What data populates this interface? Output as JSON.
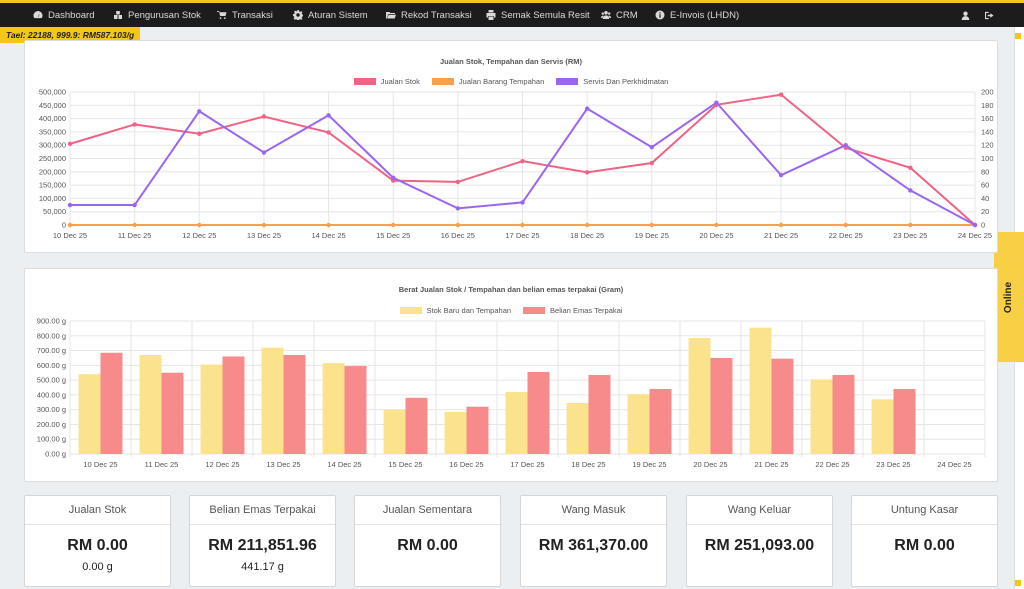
{
  "nav": {
    "items": [
      {
        "label": "Dashboard",
        "icon": "dashboard-icon"
      },
      {
        "label": "Pengurusan Stok",
        "icon": "cubes-icon"
      },
      {
        "label": "Transaksi",
        "icon": "cart-icon"
      },
      {
        "label": "Aturan Sistem",
        "icon": "gear-icon"
      },
      {
        "label": "Rekod Transaksi",
        "icon": "folder-icon"
      },
      {
        "label": "Semak Semula Resit",
        "icon": "print-icon"
      },
      {
        "label": "CRM",
        "icon": "users-icon"
      },
      {
        "label": "E-Invois (LHDN)",
        "icon": "info-icon"
      }
    ],
    "right_icons": [
      "user-icon",
      "sign-out-icon"
    ]
  },
  "tael_info": "Tael: 22188, 999.9: RM587.103/g",
  "online_label": "Online",
  "colors": {
    "accent": "#f5c518",
    "navbar": "#1c1c1c"
  },
  "chart_data": [
    {
      "type": "line",
      "title": "Jualan Stok, Tempahan dan Servis (RM)",
      "x": [
        "10 Dec 25",
        "11 Dec 25",
        "12 Dec 25",
        "13 Dec 25",
        "14 Dec 25",
        "15 Dec 25",
        "16 Dec 25",
        "17 Dec 25",
        "18 Dec 25",
        "19 Dec 25",
        "20 Dec 25",
        "21 Dec 25",
        "22 Dec 25",
        "23 Dec 25",
        "24 Dec 25"
      ],
      "ylim": [
        0,
        500000
      ],
      "y_ticks": [
        "0",
        "50,000",
        "100,000",
        "150,000",
        "200,000",
        "250,000",
        "300,000",
        "350,000",
        "400,000",
        "450,000",
        "500,000"
      ],
      "y2lim": [
        0,
        200
      ],
      "y2_ticks": [
        "0",
        "20",
        "40",
        "60",
        "80",
        "100",
        "120",
        "140",
        "160",
        "180",
        "200"
      ],
      "grid": true,
      "legend_position": "top",
      "series": [
        {
          "name": "Jualan Stok",
          "axis": "left",
          "color": "#f06384",
          "values": [
            305000,
            378000,
            343000,
            408000,
            348000,
            167000,
            162000,
            240000,
            198000,
            233000,
            452000,
            490000,
            290000,
            215000,
            0
          ]
        },
        {
          "name": "Jualan Barang Tempahan",
          "axis": "left",
          "color": "#f8a04a",
          "values": [
            0,
            0,
            0,
            0,
            0,
            0,
            0,
            0,
            0,
            0,
            0,
            0,
            0,
            0,
            0
          ]
        },
        {
          "name": "Servis Dan Perkhidmatan",
          "axis": "right",
          "color": "#9a66f0",
          "values": [
            30,
            30,
            171,
            109,
            165,
            71,
            25,
            34,
            175,
            117,
            184,
            75,
            120,
            52,
            0
          ]
        }
      ]
    },
    {
      "type": "bar",
      "title": "Berat Jualan Stok / Tempahan dan belian emas terpakai (Gram)",
      "categories": [
        "10 Dec 25",
        "11 Dec 25",
        "12 Dec 25",
        "13 Dec 25",
        "14 Dec 25",
        "15 Dec 25",
        "16 Dec 25",
        "17 Dec 25",
        "18 Dec 25",
        "19 Dec 25",
        "20 Dec 25",
        "21 Dec 25",
        "22 Dec 25",
        "23 Dec 25",
        "24 Dec 25"
      ],
      "ylim": [
        0,
        900
      ],
      "y_ticks": [
        "0.00 g",
        "100.00 g",
        "200.00 g",
        "300.00 g",
        "400.00 g",
        "500.00 g",
        "600.00 g",
        "700.00 g",
        "800.00 g",
        "900.00 g"
      ],
      "grid": true,
      "legend_position": "top",
      "series": [
        {
          "name": "Stok Baru dan Tempahan",
          "color": "#fbe38e",
          "values": [
            540,
            670,
            605,
            720,
            615,
            300,
            285,
            420,
            345,
            405,
            785,
            855,
            505,
            370,
            0
          ]
        },
        {
          "name": "Belian Emas Terpakai",
          "color": "#f78a8a",
          "values": [
            685,
            550,
            660,
            670,
            595,
            380,
            320,
            555,
            535,
            440,
            650,
            645,
            535,
            440,
            0
          ]
        }
      ]
    }
  ],
  "cards": [
    {
      "title": "Jualan Stok",
      "value": "RM 0.00",
      "sub": "0.00 g"
    },
    {
      "title": "Belian Emas Terpakai",
      "value": "RM 211,851.96",
      "sub": "441.17 g"
    },
    {
      "title": "Jualan Sementara",
      "value": "RM 0.00",
      "sub": ""
    },
    {
      "title": "Wang Masuk",
      "value": "RM 361,370.00",
      "sub": ""
    },
    {
      "title": "Wang Keluar",
      "value": "RM 251,093.00",
      "sub": ""
    },
    {
      "title": "Untung Kasar",
      "value": "RM 0.00",
      "sub": ""
    }
  ]
}
